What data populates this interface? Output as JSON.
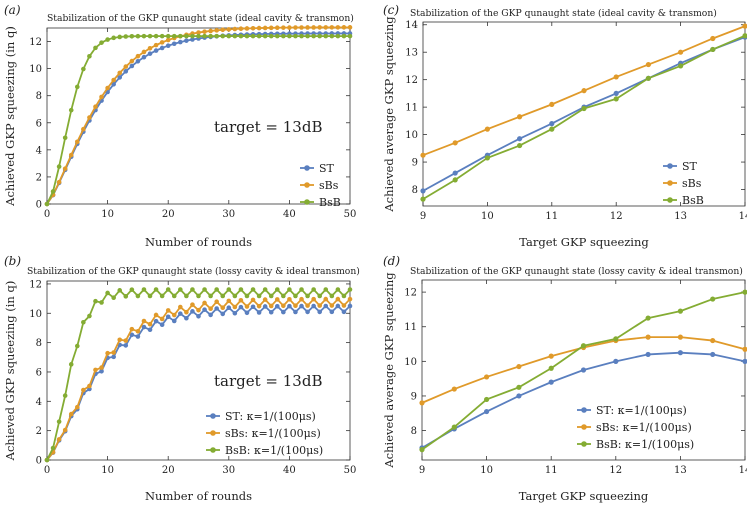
{
  "colors": {
    "ST": "#5a7fbf",
    "sBs": "#e09a2a",
    "BsB": "#84ac33",
    "axis": "#333333"
  },
  "chart_data": [
    {
      "id": "a",
      "type": "line",
      "panel_label": "(a)",
      "title": "Stabilization of the GKP qunaught state (ideal cavity & transmon)",
      "xlabel": "Number of rounds",
      "ylabel": "Achieved GKP squeezing (in q)",
      "xlim": [
        0,
        50
      ],
      "ylim": [
        0,
        13
      ],
      "xticks": [
        0,
        10,
        20,
        30,
        40,
        50
      ],
      "yticks": [
        0,
        2,
        4,
        6,
        8,
        10,
        12
      ],
      "annotation": "target = 13dB",
      "legend_position": "bottom-right",
      "model": "saturating",
      "series": [
        {
          "name": "ST",
          "legend": "ST",
          "color_key": "ST",
          "final": 12.6,
          "tau": 9.5,
          "power": 1.3,
          "osc": 0
        },
        {
          "name": "sBs",
          "legend": "sBs",
          "color_key": "sBs",
          "final": 13.05,
          "tau": 9.5,
          "power": 1.3,
          "osc": 0
        },
        {
          "name": "BsB",
          "legend": "BsB",
          "color_key": "BsB",
          "final": 12.4,
          "tau": 4.5,
          "power": 1.7,
          "osc": 0
        }
      ]
    },
    {
      "id": "b",
      "type": "line",
      "panel_label": "(b)",
      "title": "Stabilization of the GKP qunaught state (lossy cavity & ideal transmon)",
      "xlabel": "Number of rounds",
      "ylabel": "Achieved GKP squeezing (in q)",
      "xlim": [
        0,
        50
      ],
      "ylim": [
        0,
        12.2
      ],
      "xticks": [
        0,
        10,
        20,
        30,
        40,
        50
      ],
      "yticks": [
        0,
        2,
        4,
        6,
        8,
        10,
        12
      ],
      "annotation": "target = 13dB",
      "legend_position": "bottom-right",
      "model": "saturating",
      "series": [
        {
          "name": "ST",
          "legend": "ST: κ=1/(100μs)",
          "color_key": "ST",
          "final": 10.3,
          "tau": 9.5,
          "power": 1.3,
          "osc": 0.2
        },
        {
          "name": "sBs",
          "legend": "sBs: κ=1/(100μs)",
          "color_key": "sBs",
          "final": 10.75,
          "tau": 9.5,
          "power": 1.3,
          "osc": 0.22
        },
        {
          "name": "BsB",
          "legend": "BsB: κ=1/(100μs)",
          "color_key": "BsB",
          "final": 11.4,
          "tau": 4.5,
          "power": 1.7,
          "osc": 0.22
        }
      ]
    },
    {
      "id": "c",
      "type": "line",
      "panel_label": "(c)",
      "title": "Stabilization of the GKP qunaught state (ideal cavity & transmon)",
      "xlabel": "Target GKP squeezing",
      "ylabel": "Achieved average GKP squeezing",
      "xlim": [
        9,
        14
      ],
      "ylim": [
        7.4,
        14.1
      ],
      "xticks": [
        9,
        10,
        11,
        12,
        13,
        14
      ],
      "yticks": [
        8,
        9,
        10,
        11,
        12,
        13,
        14
      ],
      "legend_position": "bottom-right",
      "model": "points",
      "x": [
        9,
        9.5,
        10,
        10.5,
        11,
        11.5,
        12,
        12.5,
        13,
        13.5,
        14
      ],
      "series": [
        {
          "name": "ST",
          "legend": "ST",
          "color_key": "ST",
          "values": [
            7.95,
            8.6,
            9.25,
            9.85,
            10.4,
            11.0,
            11.5,
            12.05,
            12.6,
            13.1,
            13.55
          ]
        },
        {
          "name": "sBs",
          "legend": "sBs",
          "color_key": "sBs",
          "values": [
            9.25,
            9.7,
            10.2,
            10.65,
            11.1,
            11.6,
            12.1,
            12.55,
            13.0,
            13.5,
            13.95
          ]
        },
        {
          "name": "BsB",
          "legend": "BsB",
          "color_key": "BsB",
          "values": [
            7.65,
            8.35,
            9.15,
            9.6,
            10.2,
            10.95,
            11.3,
            12.05,
            12.5,
            13.1,
            13.6
          ]
        }
      ]
    },
    {
      "id": "d",
      "type": "line",
      "panel_label": "(d)",
      "title": "Stabilization of the GKP qunaught state (lossy cavity & ideal transmon)",
      "xlabel": "Target GKP squeezing",
      "ylabel": "Achieved average GKP squeezing",
      "xlim": [
        9,
        14
      ],
      "ylim": [
        7.15,
        12.35
      ],
      "xticks": [
        9,
        10,
        11,
        12,
        13,
        14
      ],
      "yticks": [
        8,
        9,
        10,
        11,
        12
      ],
      "legend_position": "bottom-right",
      "model": "points",
      "x": [
        9,
        9.5,
        10,
        10.5,
        11,
        11.5,
        12,
        12.5,
        13,
        13.5,
        14
      ],
      "series": [
        {
          "name": "ST",
          "legend": "ST: κ=1/(100μs)",
          "color_key": "ST",
          "values": [
            7.5,
            8.05,
            8.55,
            9.0,
            9.4,
            9.75,
            10.0,
            10.2,
            10.25,
            10.2,
            10.0
          ]
        },
        {
          "name": "sBs",
          "legend": "sBs: κ=1/(100μs)",
          "color_key": "sBs",
          "values": [
            8.8,
            9.2,
            9.55,
            9.85,
            10.15,
            10.4,
            10.6,
            10.7,
            10.7,
            10.6,
            10.35
          ]
        },
        {
          "name": "BsB",
          "legend": "BsB: κ=1/(100μs)",
          "color_key": "BsB",
          "values": [
            7.45,
            8.1,
            8.9,
            9.25,
            9.8,
            10.45,
            10.65,
            11.25,
            11.45,
            11.8,
            12.0
          ]
        }
      ]
    }
  ]
}
